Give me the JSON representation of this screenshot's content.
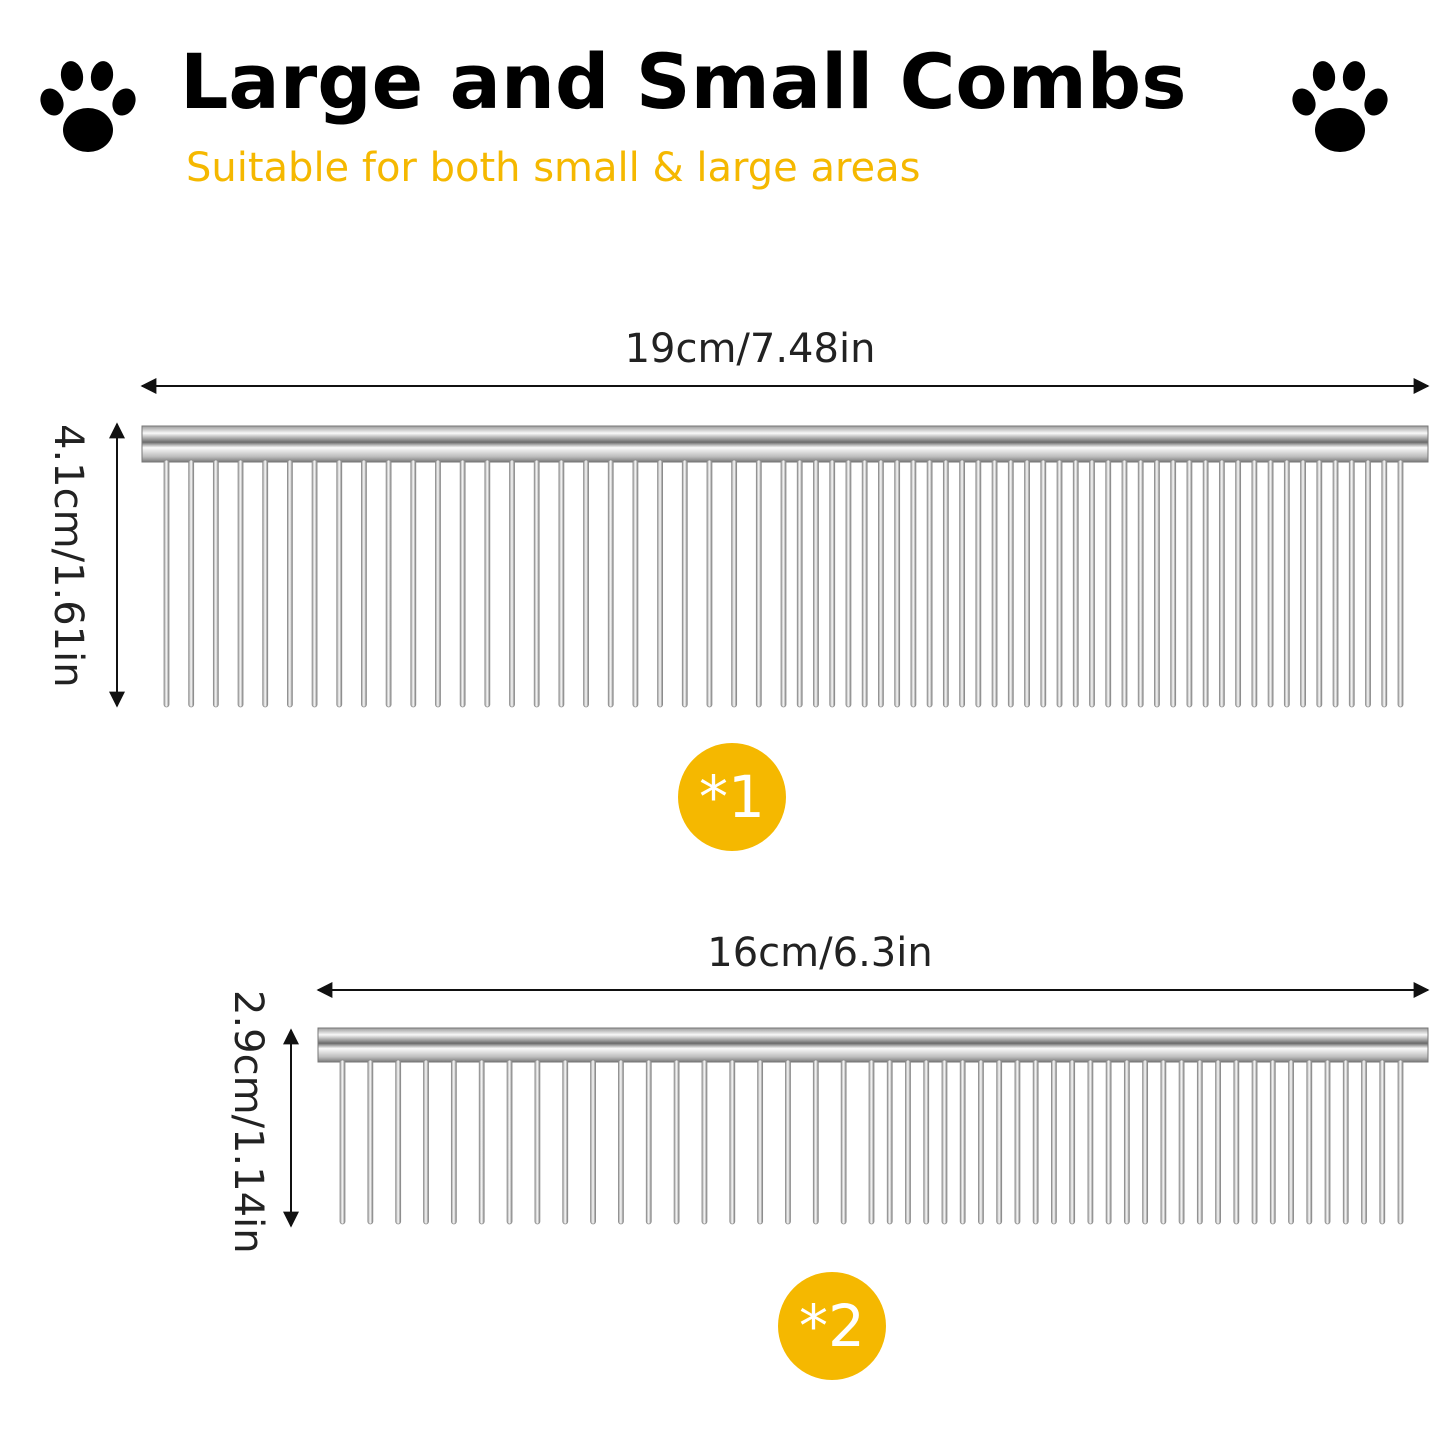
{
  "header": {
    "title": "Large and Small Combs",
    "subtitle": "Suitable for both small & large areas",
    "paw_icon": "paw-print-icon"
  },
  "colors": {
    "accent": "#f5b800",
    "text": "#000000",
    "steel_light": "#f4f4f4",
    "steel_dark": "#8a8a8a"
  },
  "combs": [
    {
      "length_label": "19cm/7.48in",
      "height_label": "4.1cm/1.61in",
      "badge": "*1"
    },
    {
      "length_label": "16cm/6.3in",
      "height_label": "2.9cm/1.14in",
      "badge": "*2"
    }
  ]
}
